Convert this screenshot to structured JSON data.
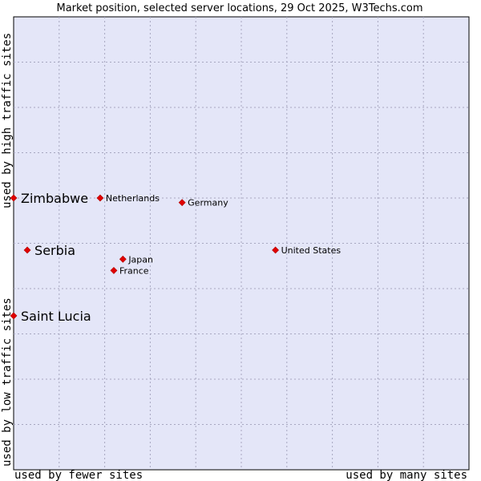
{
  "chart_data": {
    "type": "scatter",
    "title": "Market position, selected server locations, 29 Oct 2025, W3Techs.com",
    "xlabel_left": "used by fewer sites",
    "xlabel_right": "used by many sites",
    "ylabel_low": "used by low traffic sites",
    "ylabel_high": "used by high traffic sites",
    "xlim": [
      0,
      100
    ],
    "ylim": [
      0,
      100
    ],
    "grid": true,
    "colors": {
      "plot_bg": "#e4e6f8",
      "grid": "#a7a7c0",
      "marker": "#e00000",
      "axis": "#000000"
    },
    "points": [
      {
        "label": "Zimbabwe",
        "x": 0,
        "y": 60,
        "highlight": true
      },
      {
        "label": "Serbia",
        "x": 3,
        "y": 48.5,
        "highlight": true
      },
      {
        "label": "Saint Lucia",
        "x": 0,
        "y": 34,
        "highlight": true
      },
      {
        "label": "Netherlands",
        "x": 19,
        "y": 60,
        "highlight": false
      },
      {
        "label": "Germany",
        "x": 37,
        "y": 59,
        "highlight": false
      },
      {
        "label": "United States",
        "x": 57.5,
        "y": 48.5,
        "highlight": false
      },
      {
        "label": "Japan",
        "x": 24,
        "y": 46.5,
        "highlight": false
      },
      {
        "label": "France",
        "x": 22,
        "y": 44,
        "highlight": false
      }
    ]
  }
}
